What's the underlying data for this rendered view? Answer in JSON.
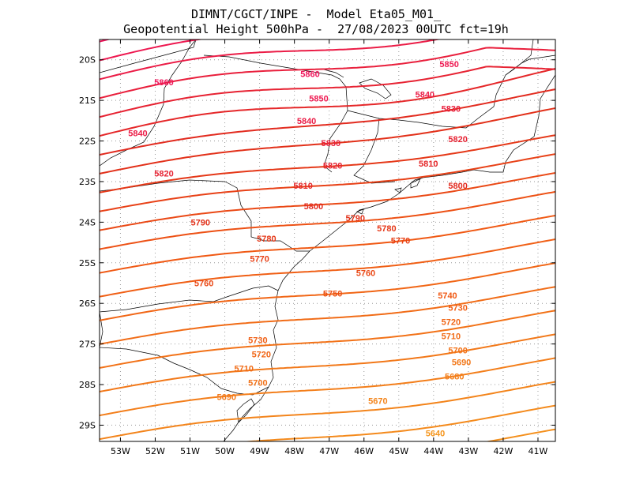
{
  "title": {
    "line1": "DIMNT/CGCT/INPE -  Model Eta05_M01_",
    "line2": "Geopotential Height 500hPa -  27/08/2023 00UTC fct=19h"
  },
  "map_extent": {
    "lon": [
      -53.6,
      -40.5
    ],
    "lat": [
      -29.4,
      -19.5
    ]
  },
  "lat_ticks": [
    {
      "value": -20,
      "label": "20S"
    },
    {
      "value": -21,
      "label": "21S"
    },
    {
      "value": -22,
      "label": "22S"
    },
    {
      "value": -23,
      "label": "23S"
    },
    {
      "value": -24,
      "label": "24S"
    },
    {
      "value": -25,
      "label": "25S"
    },
    {
      "value": -26,
      "label": "26S"
    },
    {
      "value": -27,
      "label": "27S"
    },
    {
      "value": -28,
      "label": "28S"
    },
    {
      "value": -29,
      "label": "29S"
    }
  ],
  "lon_ticks": [
    {
      "value": -53,
      "label": "53W"
    },
    {
      "value": -52,
      "label": "52W"
    },
    {
      "value": -51,
      "label": "51W"
    },
    {
      "value": -50,
      "label": "50W"
    },
    {
      "value": -49,
      "label": "49W"
    },
    {
      "value": -48,
      "label": "48W"
    },
    {
      "value": -47,
      "label": "47W"
    },
    {
      "value": -46,
      "label": "46W"
    },
    {
      "value": -45,
      "label": "45W"
    },
    {
      "value": -44,
      "label": "44W"
    },
    {
      "value": -43,
      "label": "43W"
    },
    {
      "value": -42,
      "label": "42W"
    },
    {
      "value": -41,
      "label": "41W"
    }
  ],
  "chart_data": {
    "type": "contour-map",
    "variable": "Geopotential Height 500hPa",
    "units": "gpm",
    "interval": 10,
    "range": [
      5640,
      5860
    ],
    "contour_labels": [
      {
        "value": 5860,
        "lon": -51.75,
        "lat": -20.55
      },
      {
        "value": 5860,
        "lon": -47.55,
        "lat": -20.35
      },
      {
        "value": 5850,
        "lon": -43.55,
        "lat": -20.1
      },
      {
        "value": 5850,
        "lon": -47.3,
        "lat": -20.95
      },
      {
        "value": 5840,
        "lon": -44.25,
        "lat": -20.85
      },
      {
        "value": 5840,
        "lon": -52.5,
        "lat": -21.8
      },
      {
        "value": 5840,
        "lon": -47.65,
        "lat": -21.5
      },
      {
        "value": 5830,
        "lon": -43.5,
        "lat": -21.2
      },
      {
        "value": 5830,
        "lon": -46.95,
        "lat": -22.05
      },
      {
        "value": 5820,
        "lon": -43.3,
        "lat": -21.95
      },
      {
        "value": 5820,
        "lon": -51.75,
        "lat": -22.8
      },
      {
        "value": 5820,
        "lon": -46.9,
        "lat": -22.6
      },
      {
        "value": 5810,
        "lon": -44.15,
        "lat": -22.55
      },
      {
        "value": 5810,
        "lon": -47.75,
        "lat": -23.1
      },
      {
        "value": 5800,
        "lon": -43.3,
        "lat": -23.1
      },
      {
        "value": 5800,
        "lon": -47.45,
        "lat": -23.6
      },
      {
        "value": 5790,
        "lon": -46.25,
        "lat": -23.9
      },
      {
        "value": 5790,
        "lon": -50.7,
        "lat": -24.0
      },
      {
        "value": 5780,
        "lon": -48.8,
        "lat": -24.4
      },
      {
        "value": 5780,
        "lon": -45.35,
        "lat": -24.15
      },
      {
        "value": 5770,
        "lon": -44.95,
        "lat": -24.45
      },
      {
        "value": 5770,
        "lon": -49.0,
        "lat": -24.9
      },
      {
        "value": 5760,
        "lon": -45.95,
        "lat": -25.25
      },
      {
        "value": 5760,
        "lon": -50.6,
        "lat": -25.5
      },
      {
        "value": 5750,
        "lon": -46.9,
        "lat": -25.75
      },
      {
        "value": 5740,
        "lon": -43.6,
        "lat": -25.8
      },
      {
        "value": 5730,
        "lon": -43.3,
        "lat": -26.1
      },
      {
        "value": 5730,
        "lon": -49.05,
        "lat": -26.9
      },
      {
        "value": 5720,
        "lon": -43.5,
        "lat": -26.45
      },
      {
        "value": 5720,
        "lon": -48.95,
        "lat": -27.25
      },
      {
        "value": 5710,
        "lon": -43.5,
        "lat": -26.8
      },
      {
        "value": 5710,
        "lon": -49.45,
        "lat": -27.6
      },
      {
        "value": 5700,
        "lon": -43.3,
        "lat": -27.15
      },
      {
        "value": 5700,
        "lon": -49.05,
        "lat": -27.95
      },
      {
        "value": 5690,
        "lon": -43.2,
        "lat": -27.45
      },
      {
        "value": 5690,
        "lon": -49.95,
        "lat": -28.3
      },
      {
        "value": 5680,
        "lon": -43.4,
        "lat": -27.8
      },
      {
        "value": 5670,
        "lon": -45.6,
        "lat": -28.4
      },
      {
        "value": 5640,
        "lon": -43.95,
        "lat": -29.2
      }
    ],
    "gridlines": "dotted"
  }
}
